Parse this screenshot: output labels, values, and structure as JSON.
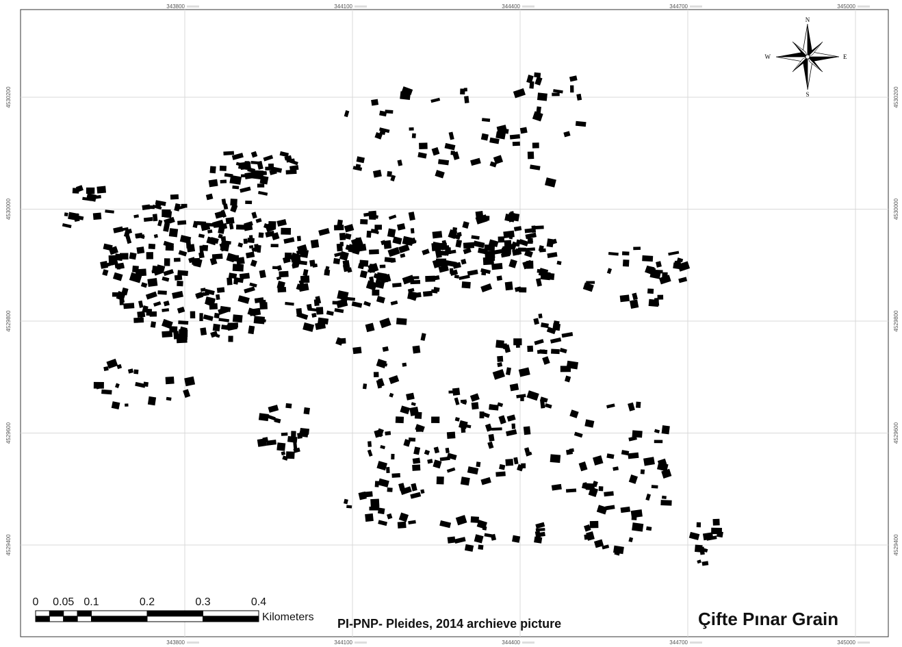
{
  "map": {
    "title": "Çifte Pınar Grain",
    "caption": "PI-PNP- Pleides, 2014 archieve picture",
    "xticks": [
      343800,
      344100,
      344400,
      344700,
      345000
    ],
    "yticks": [
      4530200,
      4530000,
      4529800,
      4529600,
      4529400
    ],
    "grid": true,
    "compass": {
      "north": "N",
      "south": "S",
      "east": "E",
      "west": "W"
    },
    "scale_bar": {
      "ticks": [
        0,
        0.05,
        0.1,
        0.2,
        0.3,
        0.4
      ],
      "unit": "Kilometers"
    }
  }
}
